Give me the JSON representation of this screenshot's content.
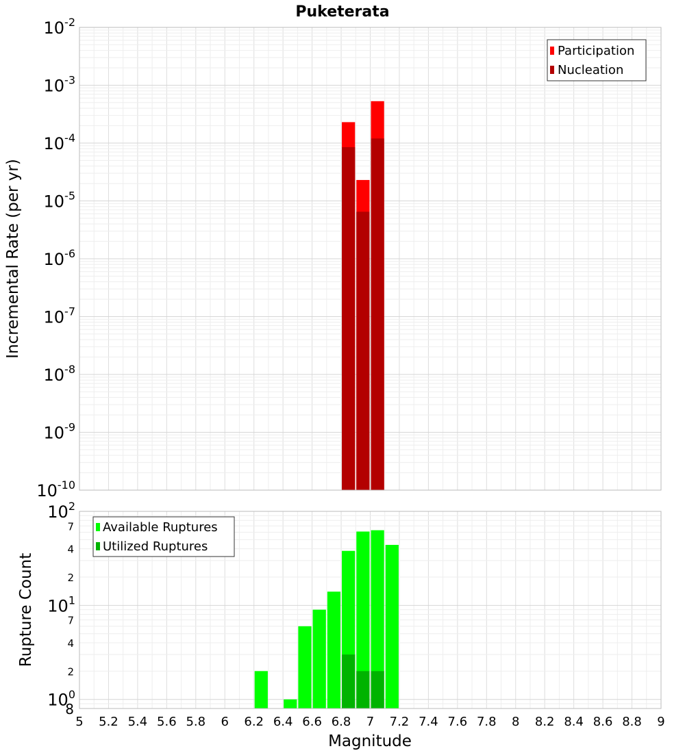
{
  "chart_data": [
    {
      "type": "bar",
      "title": "Puketerata",
      "ylabel": "Incremental Rate (per yr)",
      "yscale": "log",
      "ylim": [
        1e-10,
        0.01
      ],
      "xlim": [
        5,
        9
      ],
      "y_ticks": [
        {
          "value": 1e-10,
          "base": "10",
          "exp": "-10"
        },
        {
          "value": 1e-09,
          "base": "10",
          "exp": "-9"
        },
        {
          "value": 1e-08,
          "base": "10",
          "exp": "-8"
        },
        {
          "value": 1e-07,
          "base": "10",
          "exp": "-7"
        },
        {
          "value": 1e-06,
          "base": "10",
          "exp": "-6"
        },
        {
          "value": 1e-05,
          "base": "10",
          "exp": "-5"
        },
        {
          "value": 0.0001,
          "base": "10",
          "exp": "-4"
        },
        {
          "value": 0.001,
          "base": "10",
          "exp": "-3"
        },
        {
          "value": 0.01,
          "base": "10",
          "exp": "-2"
        }
      ],
      "legend_position": "top-right",
      "grid": true,
      "series": [
        {
          "name": "Participation",
          "color": "#ff0000",
          "bin_width": 0.1,
          "x": [
            6.85,
            6.95,
            7.05
          ],
          "values": [
            0.00023,
            2.3e-05,
            0.00053
          ]
        },
        {
          "name": "Nucleation",
          "color": "#b30000",
          "bin_width": 0.1,
          "x": [
            6.85,
            6.95,
            7.05
          ],
          "values": [
            8.5e-05,
            6.5e-06,
            0.00012
          ]
        }
      ]
    },
    {
      "type": "bar",
      "ylabel": "Rupture Count",
      "xlabel": "Magnitude",
      "yscale": "log",
      "ylim": [
        0.8,
        100
      ],
      "xlim": [
        5,
        9
      ],
      "x_ticks": [
        "5",
        "5.2",
        "5.4",
        "5.6",
        "5.8",
        "6",
        "6.2",
        "6.4",
        "6.6",
        "6.8",
        "7",
        "7.2",
        "7.4",
        "7.6",
        "7.8",
        "8",
        "8.2",
        "8.4",
        "8.6",
        "8.8",
        "9"
      ],
      "y_major_ticks": [
        {
          "value": 1,
          "base": "10",
          "exp": "0"
        },
        {
          "value": 10,
          "base": "10",
          "exp": "1"
        },
        {
          "value": 100,
          "base": "10",
          "exp": "2"
        }
      ],
      "y_minor_ticks": [
        {
          "value": 0.8,
          "label": "8"
        },
        {
          "value": 2,
          "label": "2"
        },
        {
          "value": 4,
          "label": "4"
        },
        {
          "value": 7,
          "label": "7"
        },
        {
          "value": 20,
          "label": "2"
        },
        {
          "value": 40,
          "label": "4"
        },
        {
          "value": 70,
          "label": "7"
        }
      ],
      "legend_position": "top-left",
      "grid": true,
      "series": [
        {
          "name": "Available Ruptures",
          "color": "#00ff00",
          "bin_width": 0.1,
          "x": [
            6.25,
            6.45,
            6.55,
            6.65,
            6.75,
            6.85,
            6.95,
            7.05,
            7.15
          ],
          "values": [
            2,
            1,
            6,
            9,
            14,
            38,
            61,
            63,
            44
          ]
        },
        {
          "name": "Utilized Ruptures",
          "color": "#00b300",
          "bin_width": 0.1,
          "x": [
            6.85,
            6.95,
            7.05
          ],
          "values": [
            3,
            2,
            2
          ]
        }
      ]
    }
  ]
}
